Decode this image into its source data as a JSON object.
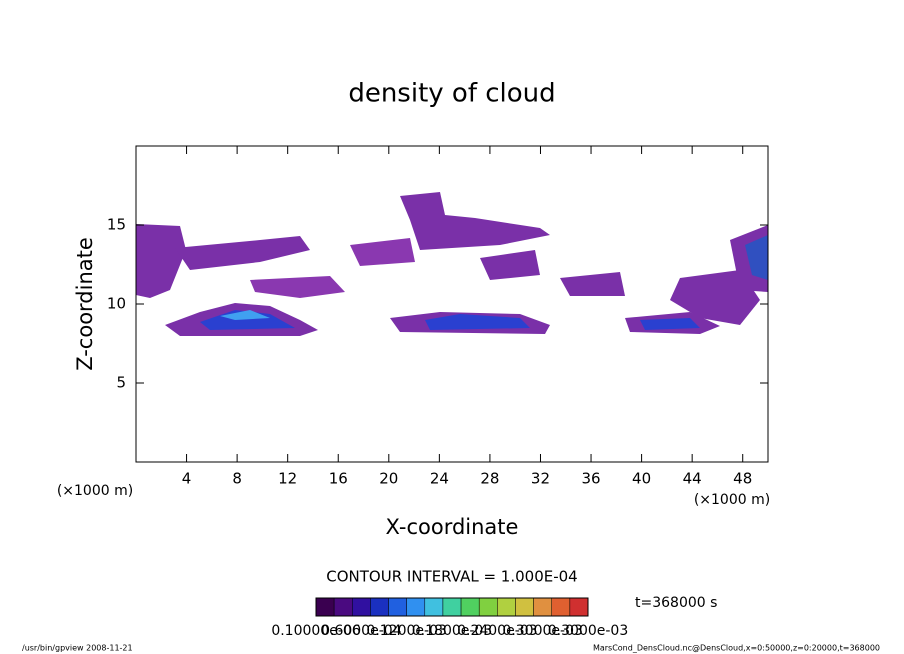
{
  "chart_data": {
    "type": "contour",
    "title": "density of cloud",
    "x_label": "X-coordinate",
    "y_label": "Z-coordinate",
    "x_unit": "(×1000 m)",
    "xlim": [
      0,
      50
    ],
    "xticks": [
      4,
      8,
      12,
      16,
      20,
      24,
      28,
      32,
      36,
      40,
      44,
      48
    ],
    "ylim": [
      0,
      20
    ],
    "yticks": [
      5,
      10,
      15
    ],
    "contour_interval": "CONTOUR INTERVAL = 1.000E-04",
    "time_label": "t=368000 s",
    "colorbar": {
      "colors": [
        "#3a0050",
        "#4a0a80",
        "#3010a0",
        "#1a30c0",
        "#2060e0",
        "#3090f0",
        "#40c0e0",
        "#40d0a0",
        "#50d060",
        "#80d040",
        "#b0d040",
        "#d0c040",
        "#e09040",
        "#e06030",
        "#d03030"
      ],
      "labels": [
        "0.10000e-06",
        "0.6000e-04",
        "0.1200e-03",
        "0.1800e-03",
        "0.2400e-03",
        "0.3000e-03",
        "0.3000e-03"
      ]
    },
    "footer_left": "/usr/bin/gpview   2008-11-21",
    "footer_right": "MarsCond_DensCloud.nc@DensCloud,x=0:50000,z=0:20000,t=368000"
  }
}
